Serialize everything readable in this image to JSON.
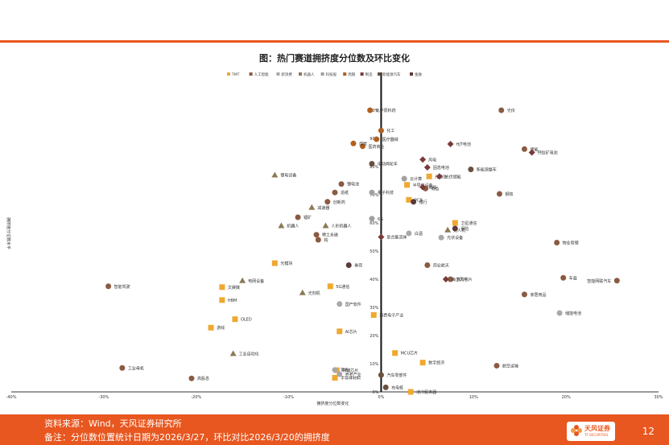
{
  "figure_title": "图：热门赛道拥挤度分位数及环比变化",
  "footer": {
    "source": "资料来源：Wind，天风证券研究所",
    "note": "备注：分位数位置统计日期为2026/3/27，环比对比2026/3/20的拥挤度",
    "page_number": "12",
    "brand": "天风证券",
    "brand_sub": "TF SECURITIES"
  },
  "chart_data": {
    "type": "scatter",
    "xlabel": "拥挤度分位数变化",
    "ylabel": "拥挤度分位数水平",
    "xlim": [
      -0.4,
      0.3
    ],
    "ylim": [
      0,
      1.0
    ],
    "x_ticks": [
      "-40%",
      "-30%",
      "-20%",
      "-10%",
      "0%",
      "10%",
      "20%",
      "30%"
    ],
    "y_ticks": [
      "0%",
      "10%",
      "20%",
      "30%",
      "40%",
      "50%",
      "60%",
      "70%",
      "80%",
      "90%",
      "100%"
    ],
    "legend_position": "top",
    "series_colors": {
      "TMT": "#f0a830",
      "人工智能": "#8a5a42",
      "新消费": "#a8a8a8",
      "机器人": "#8b7a55",
      "科技股": "#a0a0a0",
      "周期": "#b06020",
      "制造": "#7a3a3a",
      "新能源汽车": "#6a5040",
      "金融": "#5a3a3a"
    },
    "series": [
      {
        "name": "TMT",
        "marker": "square",
        "points": [
          {
            "label": "文娱媒",
            "x": -0.172,
            "y": 0.372
          },
          {
            "label": "HBM",
            "x": -0.172,
            "y": 0.326
          },
          {
            "label": "光通信",
            "x": 0.052,
            "y": 0.765
          },
          {
            "label": "OLED",
            "x": -0.158,
            "y": 0.258
          },
          {
            "label": "游戏",
            "x": -0.184,
            "y": 0.228
          },
          {
            "label": "光模块",
            "x": -0.115,
            "y": 0.457
          },
          {
            "label": "5G通信",
            "x": -0.055,
            "y": 0.375
          },
          {
            "label": "消费电子产业",
            "x": -0.008,
            "y": 0.273
          },
          {
            "label": "AI芯片",
            "x": -0.045,
            "y": 0.215
          },
          {
            "label": "半导体设备",
            "x": 0.028,
            "y": 0.735
          },
          {
            "label": "PCB",
            "x": 0.03,
            "y": 0.682
          },
          {
            "label": "MCU芯片",
            "x": 0.015,
            "y": 0.138
          },
          {
            "label": "数字经济",
            "x": 0.045,
            "y": 0.104
          },
          {
            "label": "存储芯片",
            "x": -0.048,
            "y": 0.077
          },
          {
            "label": "半导体材料",
            "x": -0.05,
            "y": 0.05
          },
          {
            "label": "卫星通信",
            "x": 0.08,
            "y": 0.6
          },
          {
            "label": "液冷服务器",
            "x": 0.032,
            "y": 0.0
          }
        ]
      },
      {
        "name": "人工智能",
        "marker": "circle",
        "points": [
          {
            "label": "锂电池",
            "x": -0.043,
            "y": 0.738
          },
          {
            "label": "稀土永磁",
            "x": -0.07,
            "y": 0.558
          },
          {
            "label": "钨",
            "x": -0.068,
            "y": 0.54
          },
          {
            "label": "有色",
            "x": 0.048,
            "y": 0.722
          },
          {
            "label": "储能",
            "x": 0.155,
            "y": 0.862
          },
          {
            "label": "物业管理",
            "x": 0.19,
            "y": 0.53
          },
          {
            "label": "创新药",
            "x": -0.058,
            "y": 0.675
          },
          {
            "label": "锂矿",
            "x": -0.09,
            "y": 0.62
          },
          {
            "label": "光伏",
            "x": 0.13,
            "y": 1.0
          },
          {
            "label": "钢铁",
            "x": 0.128,
            "y": 0.703
          },
          {
            "label": "造纸",
            "x": -0.05,
            "y": 0.708
          },
          {
            "label": "算力芯片",
            "x": 0.075,
            "y": 0.4
          },
          {
            "label": "商业航天",
            "x": 0.05,
            "y": 0.45
          },
          {
            "label": "智能网联汽车",
            "x": 0.255,
            "y": 0.395
          },
          {
            "label": "车载",
            "x": 0.197,
            "y": 0.405
          },
          {
            "label": "家居用品",
            "x": 0.155,
            "y": 0.346
          },
          {
            "label": "航空运输",
            "x": 0.125,
            "y": 0.093
          },
          {
            "label": "智能驾驶",
            "x": -0.295,
            "y": 0.375
          },
          {
            "label": "工业母机",
            "x": -0.28,
            "y": 0.085
          },
          {
            "label": "高股息",
            "x": -0.205,
            "y": 0.048
          }
        ]
      },
      {
        "name": "新消费",
        "marker": "circle",
        "points": [
          {
            "label": "国产软件",
            "x": -0.045,
            "y": 0.312
          },
          {
            "label": "光伏设备",
            "x": 0.065,
            "y": 0.548
          },
          {
            "label": "储能电池",
            "x": 0.193,
            "y": 0.28
          },
          {
            "label": "养老产业",
            "x": -0.045,
            "y": 0.063
          },
          {
            "label": "白酒",
            "x": 0.03,
            "y": 0.563
          },
          {
            "label": "零售",
            "x": -0.05,
            "y": 0.078
          }
        ]
      },
      {
        "name": "机器人",
        "marker": "triangle",
        "points": [
          {
            "label": "机器人",
            "x": -0.108,
            "y": 0.59
          },
          {
            "label": "锂电设备",
            "x": -0.115,
            "y": 0.77
          },
          {
            "label": "电网设备",
            "x": -0.15,
            "y": 0.395
          },
          {
            "label": "工业自动化",
            "x": -0.16,
            "y": 0.136
          },
          {
            "label": "减速器",
            "x": -0.075,
            "y": 0.655
          },
          {
            "label": "人形机器人",
            "x": -0.06,
            "y": 0.59
          },
          {
            "label": "无人机",
            "x": 0.072,
            "y": 0.575
          },
          {
            "label": "光刻机",
            "x": -0.085,
            "y": 0.352
          }
        ]
      },
      {
        "name": "科技股",
        "marker": "circle",
        "points": [
          {
            "label": "6G",
            "x": -0.01,
            "y": 0.615
          },
          {
            "label": "量子科技",
            "x": -0.01,
            "y": 0.708
          },
          {
            "label": "云计算",
            "x": 0.025,
            "y": 0.757
          }
        ]
      },
      {
        "name": "周期",
        "marker": "circle",
        "points": [
          {
            "label": "化学原料药",
            "x": -0.012,
            "y": 1.0
          },
          {
            "label": "医疗器械",
            "x": -0.005,
            "y": 0.897
          },
          {
            "label": "医药商业",
            "x": -0.02,
            "y": 0.872
          },
          {
            "label": "化工",
            "x": 0.0,
            "y": 0.928
          },
          {
            "label": "煤炭",
            "x": -0.03,
            "y": 0.882
          }
        ]
      },
      {
        "name": "制造",
        "marker": "diamond",
        "points": [
          {
            "label": "HJT电池",
            "x": 0.075,
            "y": 0.88
          },
          {
            "label": "风电",
            "x": 0.045,
            "y": 0.825
          },
          {
            "label": "钙钛矿电池",
            "x": 0.163,
            "y": 0.85
          },
          {
            "label": "固态电池",
            "x": 0.05,
            "y": 0.797
          },
          {
            "label": "光伏储能",
            "x": 0.063,
            "y": 0.765
          },
          {
            "label": "氢能",
            "x": 0.045,
            "y": 0.727
          },
          {
            "label": "海上风电",
            "x": 0.07,
            "y": 0.4
          },
          {
            "label": "复合集流体",
            "x": 0.0,
            "y": 0.55
          }
        ]
      },
      {
        "name": "新能源汽车",
        "marker": "circle",
        "points": [
          {
            "label": "汽车零部件",
            "x": 0.0,
            "y": 0.06
          },
          {
            "label": "充电桩",
            "x": 0.005,
            "y": 0.016
          },
          {
            "label": "新能源整车",
            "x": 0.097,
            "y": 0.79
          },
          {
            "label": "电动两轮车",
            "x": -0.01,
            "y": 0.81
          }
        ]
      },
      {
        "name": "金融",
        "marker": "circle",
        "points": [
          {
            "label": "券商",
            "x": -0.035,
            "y": 0.45
          },
          {
            "label": "银行",
            "x": 0.035,
            "y": 0.675
          },
          {
            "label": "保险",
            "x": 0.08,
            "y": 0.58
          }
        ]
      }
    ]
  }
}
